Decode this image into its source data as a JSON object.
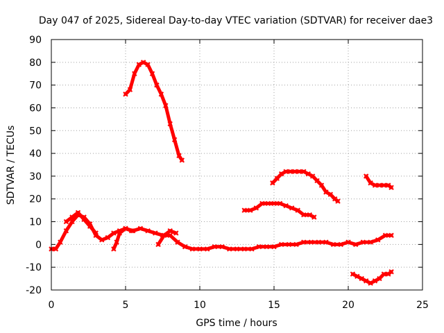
{
  "chart_data": {
    "type": "line",
    "title": "Day 047 of 2025, Sidereal Day-to-day VTEC variation (SDTVAR) for receiver dae3",
    "xlabel": "GPS time / hours",
    "ylabel": "SDTVAR / TECUs",
    "xlim": [
      0,
      25
    ],
    "ylim": [
      -20,
      90
    ],
    "xticks": [
      0,
      5,
      10,
      15,
      20,
      25
    ],
    "yticks": [
      -20,
      -10,
      0,
      10,
      20,
      30,
      40,
      50,
      60,
      70,
      80,
      90
    ],
    "grid": true,
    "color": "#ff0000",
    "series": [
      {
        "name": "s1",
        "x": [
          0,
          0.3,
          0.6,
          1.0,
          1.4,
          1.8,
          2.2,
          2.6,
          3.0,
          3.4,
          3.8,
          4.2,
          4.6,
          5.0,
          5.5,
          6.0,
          6.5,
          7.0,
          7.5,
          8.0,
          8.5,
          9.0,
          9.5,
          10.0,
          10.5,
          11.0,
          11.5,
          12.0,
          12.5,
          13.0,
          13.5,
          14.0,
          14.5,
          15.0,
          15.5,
          16.0,
          16.5,
          17.0,
          17.5,
          18.0,
          18.5,
          19.0,
          19.5,
          20.0,
          20.5,
          21.0,
          21.5,
          22.0,
          22.5,
          22.9
        ],
        "y": [
          -2,
          -2,
          1,
          6,
          10,
          13,
          12,
          9,
          4,
          2,
          3,
          5,
          6,
          7,
          6,
          7,
          6,
          5,
          4,
          4,
          1,
          -1,
          -2,
          -2,
          -2,
          -1,
          -1,
          -2,
          -2,
          -2,
          -2,
          -1,
          -1,
          -1,
          0,
          0,
          0,
          1,
          1,
          1,
          1,
          0,
          0,
          1,
          0,
          1,
          1,
          2,
          4,
          4
        ]
      },
      {
        "name": "s2",
        "x": [
          1.0,
          1.4,
          1.8,
          2.2,
          2.6,
          3.0
        ],
        "y": [
          10,
          12,
          14,
          11,
          8,
          5
        ]
      },
      {
        "name": "s3",
        "x": [
          4.2,
          4.4,
          4.6,
          5.0,
          5.4
        ],
        "y": [
          -2,
          1,
          5,
          7,
          6
        ]
      },
      {
        "name": "s4",
        "x": [
          7.2,
          7.6,
          8.0,
          8.4
        ],
        "y": [
          0,
          4,
          6,
          5
        ]
      },
      {
        "name": "s5",
        "x": [
          5.0,
          5.3,
          5.6,
          5.9,
          6.2,
          6.5,
          6.8,
          7.1,
          7.4,
          7.7,
          8.0,
          8.3,
          8.6,
          8.8
        ],
        "y": [
          66,
          68,
          75,
          79,
          80,
          79,
          75,
          70,
          66,
          61,
          53,
          46,
          39,
          37
        ]
      },
      {
        "name": "s6",
        "x": [
          13.0,
          13.4,
          13.8,
          14.2,
          14.6,
          15.0,
          15.4,
          15.8,
          16.2,
          16.6,
          17.0,
          17.4,
          17.7
        ],
        "y": [
          15,
          15,
          16,
          18,
          18,
          18,
          18,
          17,
          16,
          15,
          13,
          13,
          12
        ]
      },
      {
        "name": "s7",
        "x": [
          14.9,
          15.2,
          15.5,
          15.8,
          16.1,
          16.4,
          16.7,
          17.0,
          17.3,
          17.6,
          17.9,
          18.2,
          18.5,
          18.8,
          19.1,
          19.3
        ],
        "y": [
          27,
          29,
          31,
          32,
          32,
          32,
          32,
          32,
          31,
          30,
          28,
          26,
          23,
          22,
          20,
          19
        ]
      },
      {
        "name": "s8",
        "x": [
          20.3,
          20.6,
          20.9,
          21.2,
          21.5,
          21.8,
          22.1,
          22.4,
          22.7,
          22.9
        ],
        "y": [
          -13,
          -14,
          -15,
          -16,
          -17,
          -16,
          -15,
          -13,
          -13,
          -12
        ]
      },
      {
        "name": "s9",
        "x": [
          21.2,
          21.5,
          21.8,
          22.1,
          22.4,
          22.7,
          22.9
        ],
        "y": [
          30,
          27,
          26,
          26,
          26,
          26,
          25
        ]
      }
    ]
  }
}
